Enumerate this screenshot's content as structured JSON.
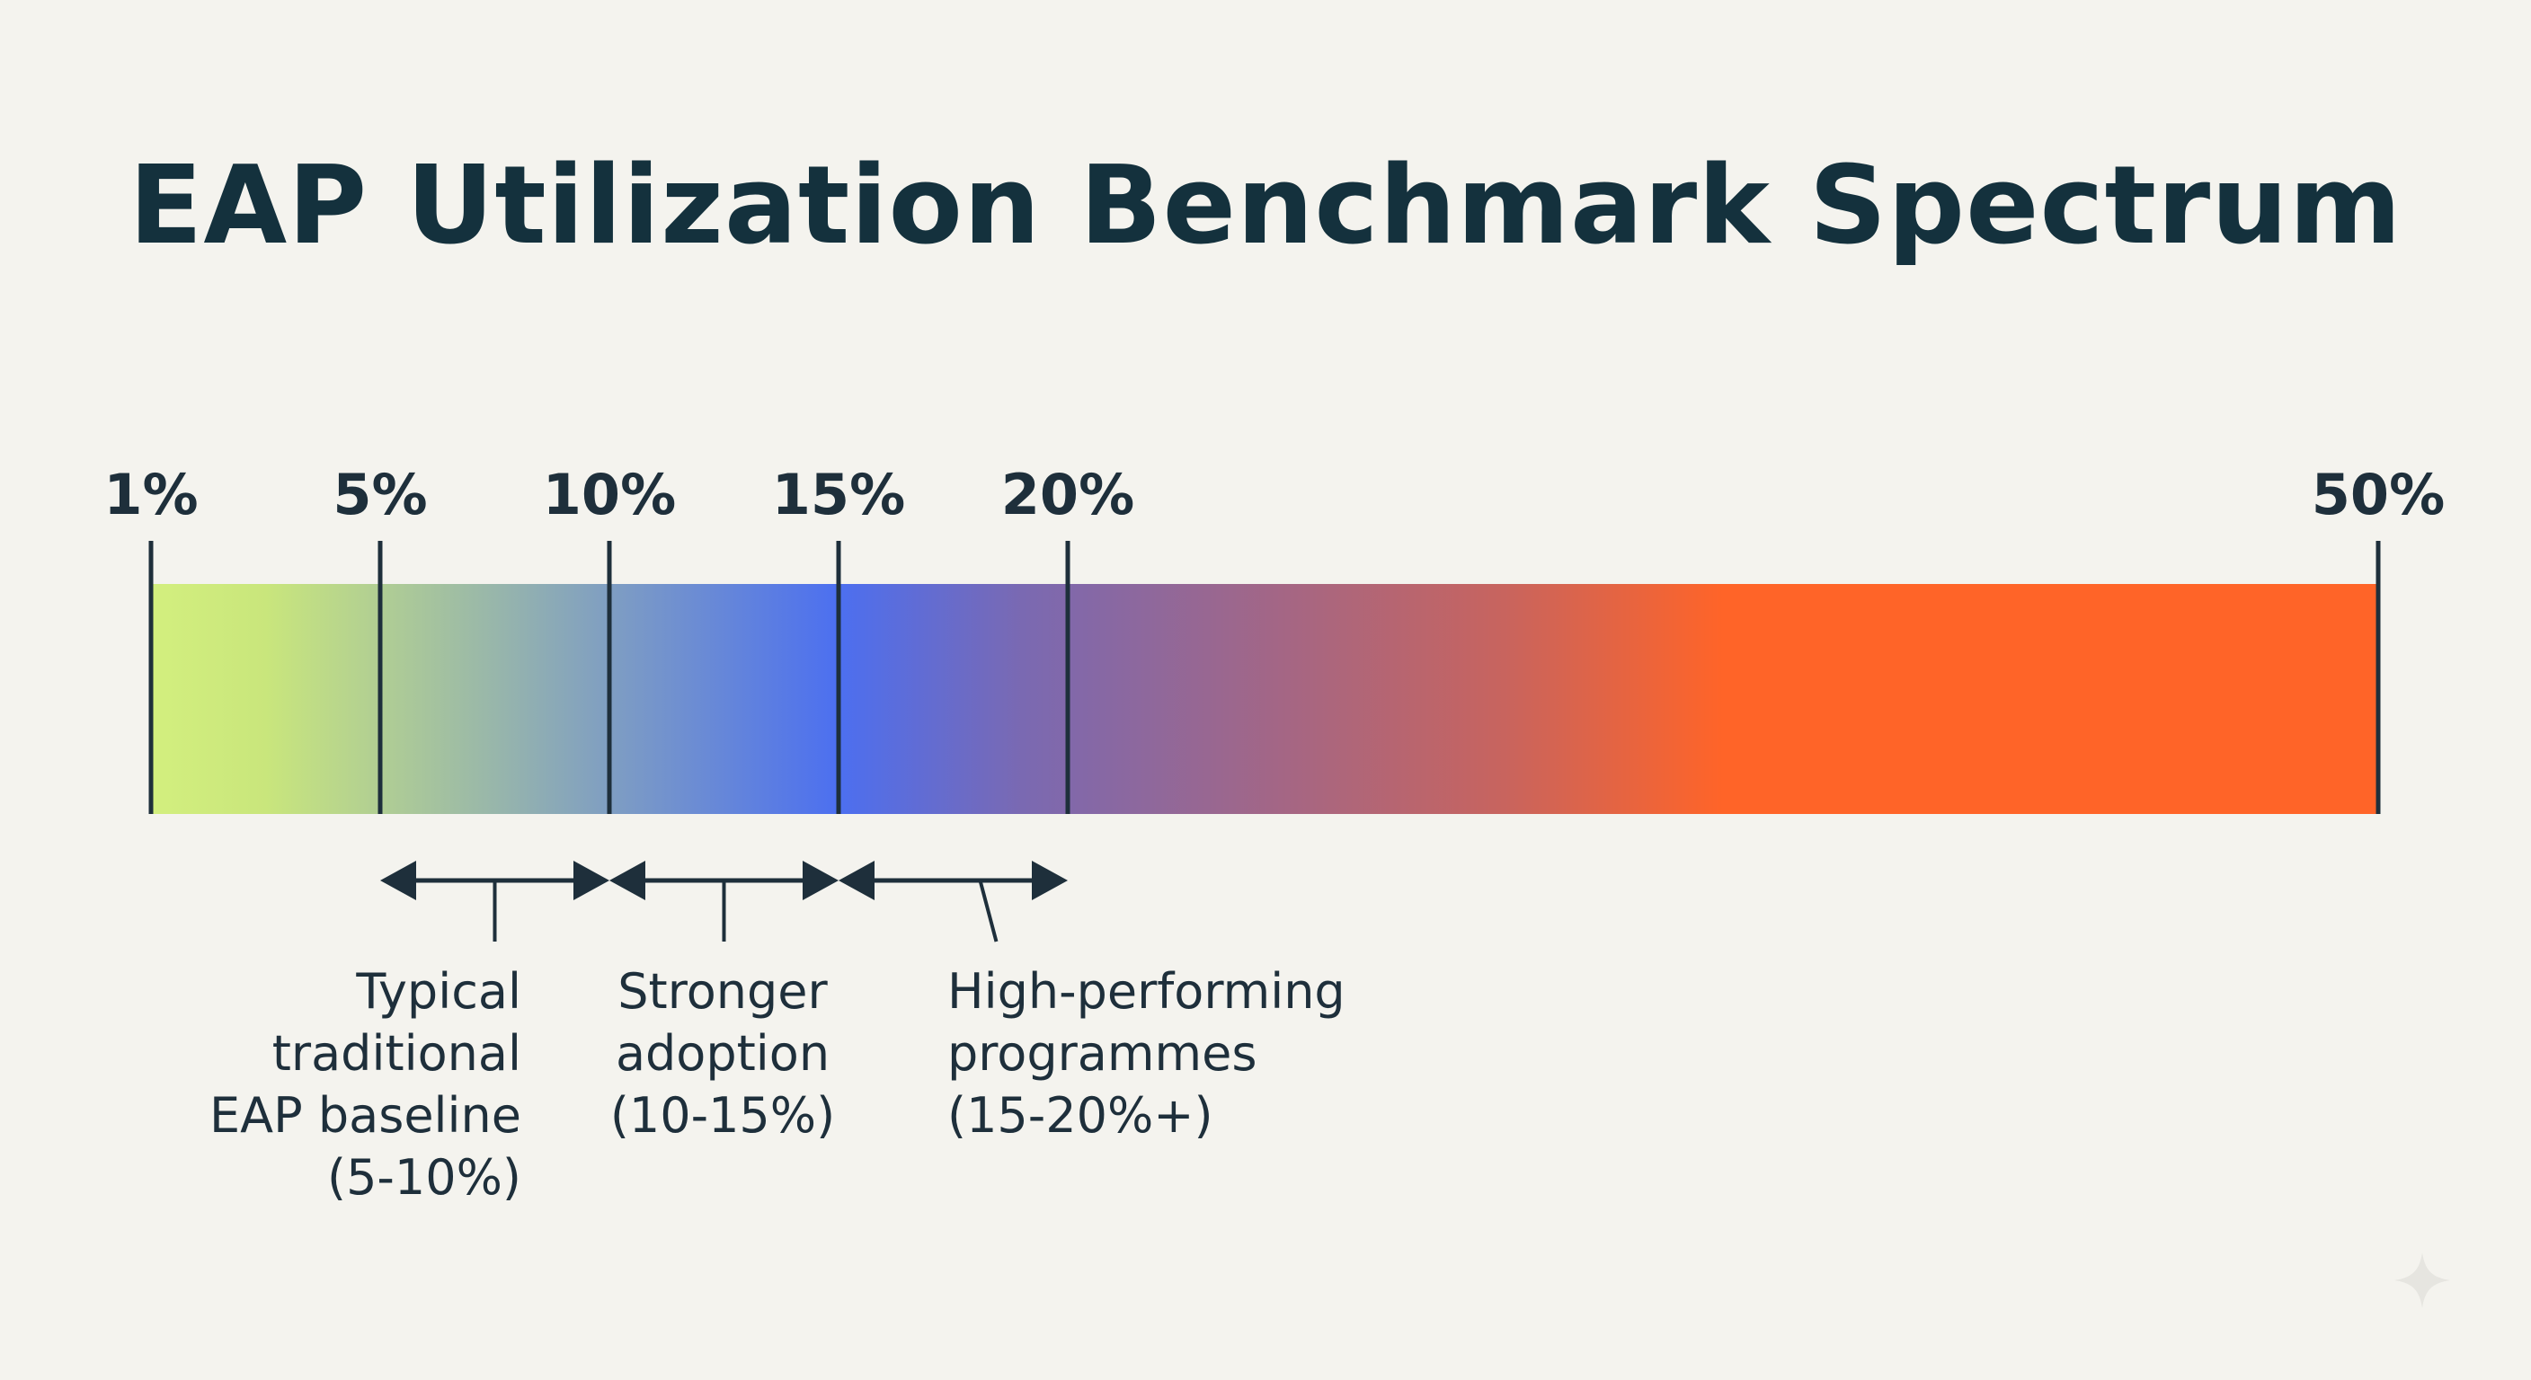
{
  "title": "EAP Utilization Benchmark Spectrum",
  "scale": {
    "domain": [
      1,
      50
    ],
    "ticks": [
      {
        "value": 1,
        "label": "1%"
      },
      {
        "value": 5,
        "label": "5%"
      },
      {
        "value": 10,
        "label": "10%"
      },
      {
        "value": 15,
        "label": "15%"
      },
      {
        "value": 20,
        "label": "20%"
      },
      {
        "value": 50,
        "label": "50%"
      }
    ],
    "gradient_stops": [
      {
        "value": 1,
        "color": "#d3ef7e"
      },
      {
        "value": 3,
        "color": "#c9e67c"
      },
      {
        "value": 10,
        "color": "#7f9ec2"
      },
      {
        "value": 15,
        "color": "#4c6ff0"
      },
      {
        "value": 19,
        "color": "#7a69b2"
      },
      {
        "value": 30,
        "color": "#c8645e"
      },
      {
        "value": 35,
        "color": "#ff6428"
      },
      {
        "value": 50,
        "color": "#ff6428"
      }
    ]
  },
  "ranges": [
    {
      "from": 5,
      "to": 10,
      "align": "right",
      "lines": [
        "Typical",
        "traditional",
        "EAP baseline",
        "(5-10%)"
      ]
    },
    {
      "from": 10,
      "to": 15,
      "align": "center",
      "lines": [
        "Stronger",
        "adoption",
        "(10-15%)"
      ]
    },
    {
      "from": 15,
      "to": 20,
      "align": "left",
      "lines": [
        "High-performing",
        "programmes",
        "(15-20%+)"
      ]
    }
  ],
  "colors": {
    "ink": "#1e2f3b",
    "background": "#f4f3ee"
  },
  "icons": {
    "watermark": "sparkle-icon"
  }
}
